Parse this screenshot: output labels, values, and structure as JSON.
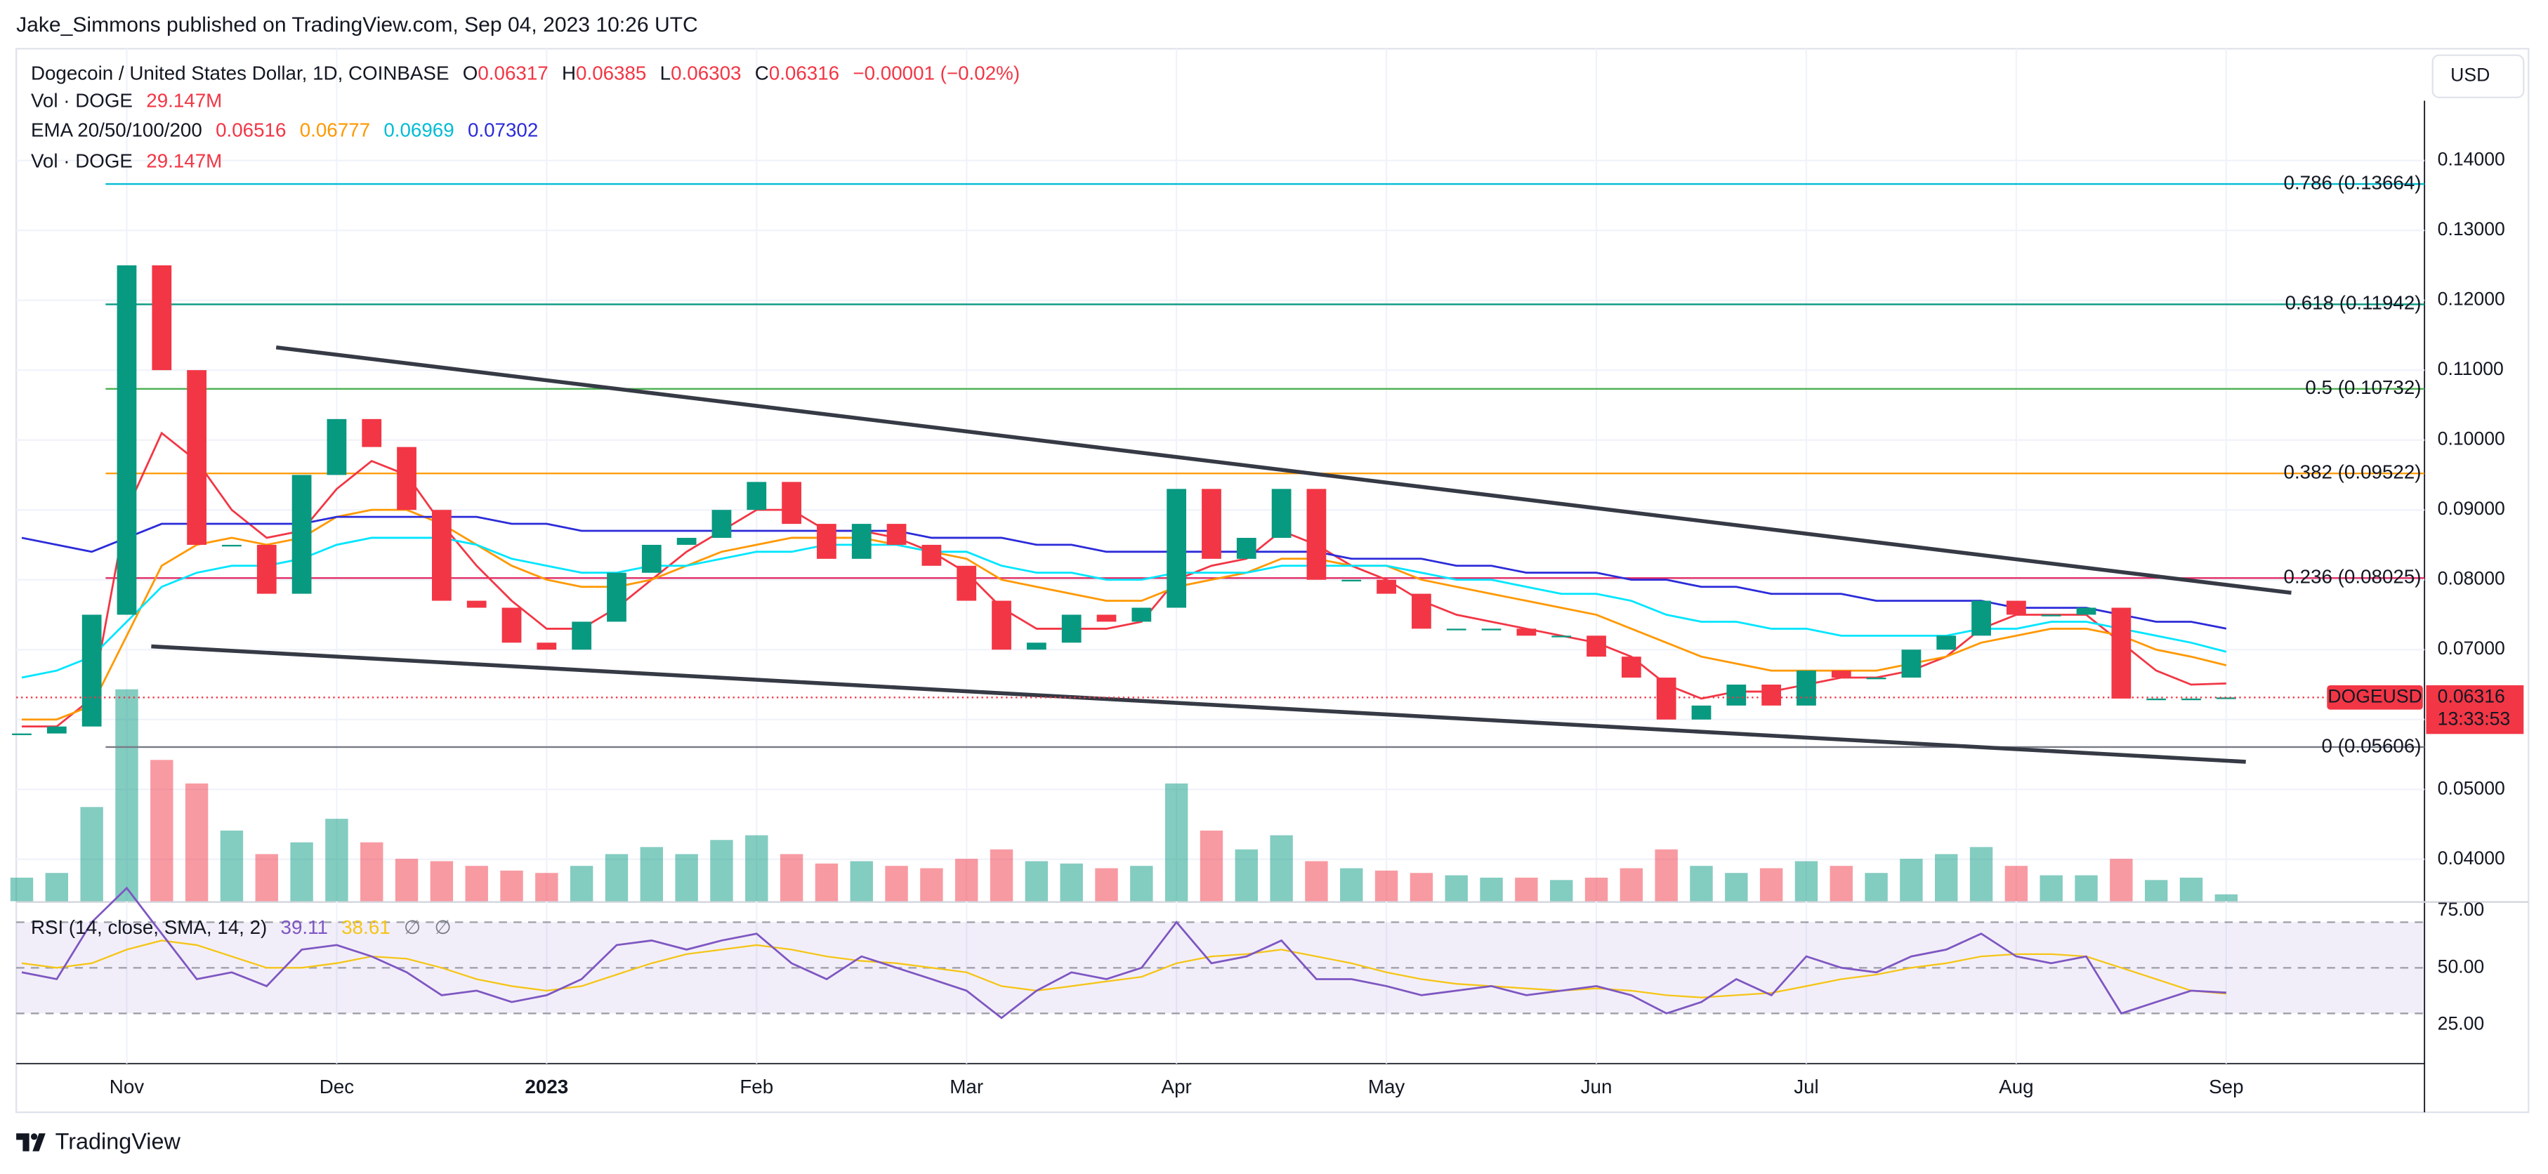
{
  "header": {
    "publisher": "Jake_Simmons published on TradingView.com, Sep 04, 2023 10:26 UTC",
    "footer": "TradingView"
  },
  "chart_data": {
    "type": "candlestick",
    "symbol": "Dogecoin / United States Dollar, 1D, COINBASE",
    "ohlc": [
      {
        "label": "O",
        "value": 0.06317
      },
      {
        "label": "H",
        "value": 0.06385
      },
      {
        "label": "L",
        "value": 0.06303
      },
      {
        "label": "C",
        "value": 0.06316
      }
    ],
    "change": "−0.00001 (−0.02%)",
    "currency": "USD",
    "ticker": "DOGEUSD",
    "countdown": "13:33:53",
    "categories": [
      null,
      null,
      null,
      "Nov",
      null,
      null,
      null,
      null,
      null,
      "Dec",
      null,
      null,
      null,
      null,
      null,
      "2023",
      null,
      null,
      null,
      null,
      null,
      "Feb",
      null,
      null,
      null,
      null,
      null,
      "Mar",
      null,
      null,
      null,
      null,
      null,
      "Apr",
      null,
      null,
      null,
      null,
      null,
      "May",
      null,
      null,
      null,
      null,
      null,
      "Jun",
      null,
      null,
      null,
      null,
      null,
      "Jul",
      null,
      null,
      null,
      null,
      null,
      "Aug",
      null,
      null,
      null,
      null,
      null,
      "Sep"
    ],
    "price": {
      "up_color": "#089981",
      "down_color": "#f23645",
      "values": [
        0.058,
        0.059,
        0.075,
        0.125,
        0.11,
        0.085,
        0.085,
        0.078,
        0.095,
        0.103,
        0.099,
        0.09,
        0.077,
        0.076,
        0.071,
        0.07,
        0.074,
        0.081,
        0.085,
        0.086,
        0.09,
        0.094,
        0.088,
        0.083,
        0.088,
        0.085,
        0.082,
        0.077,
        0.07,
        0.071,
        0.075,
        0.074,
        0.076,
        0.093,
        0.083,
        0.086,
        0.093,
        0.08,
        0.08,
        0.078,
        0.073,
        0.073,
        0.073,
        0.072,
        0.072,
        0.069,
        0.066,
        0.06,
        0.062,
        0.065,
        0.062,
        0.067,
        0.066,
        0.066,
        0.07,
        0.072,
        0.077,
        0.075,
        0.075,
        0.076,
        0.063,
        0.063,
        0.063,
        0.06316
      ]
    },
    "ema": {
      "name": "EMA 20/50/100/200",
      "series": [
        {
          "color": "#f23645",
          "values": [
            0.059,
            0.059,
            0.063,
            0.09,
            0.101,
            0.097,
            0.09,
            0.086,
            0.087,
            0.093,
            0.097,
            0.095,
            0.088,
            0.082,
            0.077,
            0.073,
            0.073,
            0.076,
            0.08,
            0.084,
            0.087,
            0.09,
            0.09,
            0.087,
            0.087,
            0.086,
            0.084,
            0.081,
            0.076,
            0.073,
            0.073,
            0.073,
            0.074,
            0.08,
            0.082,
            0.083,
            0.087,
            0.085,
            0.082,
            0.08,
            0.077,
            0.075,
            0.074,
            0.073,
            0.072,
            0.071,
            0.069,
            0.065,
            0.063,
            0.064,
            0.064,
            0.065,
            0.066,
            0.066,
            0.067,
            0.069,
            0.073,
            0.075,
            0.075,
            0.075,
            0.071,
            0.067,
            0.065,
            0.06516
          ]
        },
        {
          "color": "#ff9800",
          "values": [
            0.06,
            0.06,
            0.062,
            0.072,
            0.082,
            0.085,
            0.086,
            0.085,
            0.086,
            0.089,
            0.09,
            0.09,
            0.088,
            0.085,
            0.082,
            0.08,
            0.079,
            0.079,
            0.08,
            0.082,
            0.084,
            0.085,
            0.086,
            0.086,
            0.086,
            0.085,
            0.084,
            0.083,
            0.08,
            0.079,
            0.078,
            0.077,
            0.077,
            0.079,
            0.08,
            0.081,
            0.083,
            0.083,
            0.082,
            0.082,
            0.08,
            0.079,
            0.078,
            0.077,
            0.076,
            0.075,
            0.073,
            0.071,
            0.069,
            0.068,
            0.067,
            0.067,
            0.067,
            0.067,
            0.068,
            0.069,
            0.071,
            0.072,
            0.073,
            0.073,
            0.072,
            0.07,
            0.069,
            0.06777
          ]
        },
        {
          "color": "#00e5ff",
          "values": [
            0.066,
            0.067,
            0.069,
            0.074,
            0.079,
            0.081,
            0.082,
            0.082,
            0.083,
            0.085,
            0.086,
            0.086,
            0.086,
            0.085,
            0.083,
            0.082,
            0.081,
            0.081,
            0.082,
            0.082,
            0.083,
            0.084,
            0.084,
            0.085,
            0.085,
            0.085,
            0.084,
            0.084,
            0.082,
            0.081,
            0.081,
            0.08,
            0.08,
            0.081,
            0.081,
            0.081,
            0.082,
            0.082,
            0.082,
            0.082,
            0.081,
            0.08,
            0.08,
            0.079,
            0.078,
            0.078,
            0.077,
            0.075,
            0.074,
            0.074,
            0.073,
            0.073,
            0.072,
            0.072,
            0.072,
            0.072,
            0.073,
            0.073,
            0.074,
            0.074,
            0.073,
            0.072,
            0.071,
            0.06969
          ]
        },
        {
          "color": "#2b2bd9",
          "values": [
            0.086,
            0.085,
            0.084,
            0.086,
            0.088,
            0.088,
            0.088,
            0.088,
            0.088,
            0.089,
            0.089,
            0.089,
            0.089,
            0.089,
            0.088,
            0.088,
            0.087,
            0.087,
            0.087,
            0.087,
            0.087,
            0.087,
            0.087,
            0.087,
            0.087,
            0.087,
            0.086,
            0.086,
            0.086,
            0.085,
            0.085,
            0.084,
            0.084,
            0.084,
            0.084,
            0.084,
            0.084,
            0.084,
            0.083,
            0.083,
            0.083,
            0.082,
            0.082,
            0.081,
            0.081,
            0.081,
            0.08,
            0.08,
            0.079,
            0.079,
            0.078,
            0.078,
            0.078,
            0.077,
            0.077,
            0.077,
            0.077,
            0.076,
            0.076,
            0.076,
            0.075,
            0.074,
            0.074,
            0.07302
          ]
        }
      ]
    },
    "volume": {
      "name": "Vol · DOGE",
      "readout": "29.147M",
      "values": [
        100,
        120,
        400,
        900,
        600,
        500,
        300,
        200,
        250,
        350,
        250,
        180,
        170,
        150,
        130,
        120,
        150,
        200,
        230,
        200,
        260,
        280,
        200,
        160,
        170,
        150,
        140,
        180,
        220,
        170,
        160,
        140,
        150,
        500,
        300,
        220,
        280,
        170,
        140,
        130,
        120,
        110,
        100,
        100,
        90,
        100,
        140,
        220,
        150,
        120,
        140,
        170,
        150,
        120,
        180,
        200,
        230,
        150,
        110,
        110,
        180,
        90,
        100,
        29.147
      ]
    },
    "ylim": [
      0.034,
      0.156
    ],
    "yticks": [
      {
        "value": 0.14,
        "label": "0.14000"
      },
      {
        "value": 0.13,
        "label": "0.13000"
      },
      {
        "value": 0.12,
        "label": "0.12000"
      },
      {
        "value": 0.11,
        "label": "0.11000"
      },
      {
        "value": 0.1,
        "label": "0.10000"
      },
      {
        "value": 0.09,
        "label": "0.09000"
      },
      {
        "value": 0.08,
        "label": "0.08000"
      },
      {
        "value": 0.07,
        "label": "0.07000"
      },
      {
        "value": 0.06,
        "label": "0.06000"
      },
      {
        "value": 0.05,
        "label": "0.05000"
      },
      {
        "value": 0.04,
        "label": "0.04000"
      }
    ],
    "grid": true,
    "fib_levels": [
      {
        "label": "0.786 (0.13664)",
        "value": 0.13664,
        "color": "#00bcd4"
      },
      {
        "label": "0.618 (0.11942)",
        "value": 0.11942,
        "color": "#089981"
      },
      {
        "label": "0.5 (0.10732)",
        "value": 0.10732,
        "color": "#4caf50"
      },
      {
        "label": "0.382 (0.09522)",
        "value": 0.09522,
        "color": "#ff9800"
      },
      {
        "label": "0.236 (0.08025)",
        "value": 0.08025,
        "color": "#e0245e"
      },
      {
        "label": "0 (0.05606)",
        "value": 0.05606,
        "color": "#787b86"
      }
    ],
    "trendlines": [
      {
        "color": "#363a45",
        "points": [
          [
            7.27,
            0.11326
          ],
          [
            64.86,
            0.07814
          ]
        ]
      },
      {
        "color": "#363a45",
        "points": [
          [
            3.7,
            0.07047
          ],
          [
            63.56,
            0.05395
          ]
        ]
      }
    ],
    "rsi": {
      "name": "RSI (14, close, SMA, 14, 2)",
      "color": "#7e57c2",
      "sma_color": "#f5c518",
      "values": [
        48,
        45,
        70,
        85,
        65,
        45,
        48,
        42,
        58,
        60,
        55,
        48,
        38,
        40,
        35,
        38,
        45,
        60,
        62,
        58,
        62,
        65,
        52,
        45,
        55,
        50,
        45,
        40,
        28,
        40,
        48,
        45,
        50,
        70,
        52,
        55,
        62,
        45,
        45,
        42,
        38,
        40,
        42,
        38,
        40,
        42,
        38,
        30,
        35,
        45,
        38,
        55,
        50,
        48,
        55,
        58,
        65,
        55,
        52,
        55,
        30,
        35,
        40,
        39.11
      ],
      "sma": [
        52,
        50,
        52,
        58,
        62,
        60,
        55,
        50,
        50,
        52,
        55,
        54,
        50,
        45,
        42,
        40,
        42,
        47,
        52,
        56,
        58,
        60,
        58,
        55,
        53,
        52,
        50,
        48,
        42,
        40,
        42,
        44,
        46,
        52,
        55,
        56,
        58,
        55,
        52,
        48,
        45,
        43,
        42,
        41,
        40,
        41,
        40,
        38,
        37,
        38,
        39,
        42,
        45,
        47,
        50,
        52,
        55,
        56,
        56,
        55,
        50,
        45,
        40,
        38.61
      ],
      "na_marks": [
        "∅",
        "∅"
      ],
      "ylim": [
        8,
        78.5
      ],
      "yticks": [
        {
          "value": 75,
          "label": "75.00"
        },
        {
          "value": 50,
          "label": "50.00"
        },
        {
          "value": 25,
          "label": "25.00"
        }
      ],
      "bands": [
        70,
        50,
        30
      ]
    }
  }
}
